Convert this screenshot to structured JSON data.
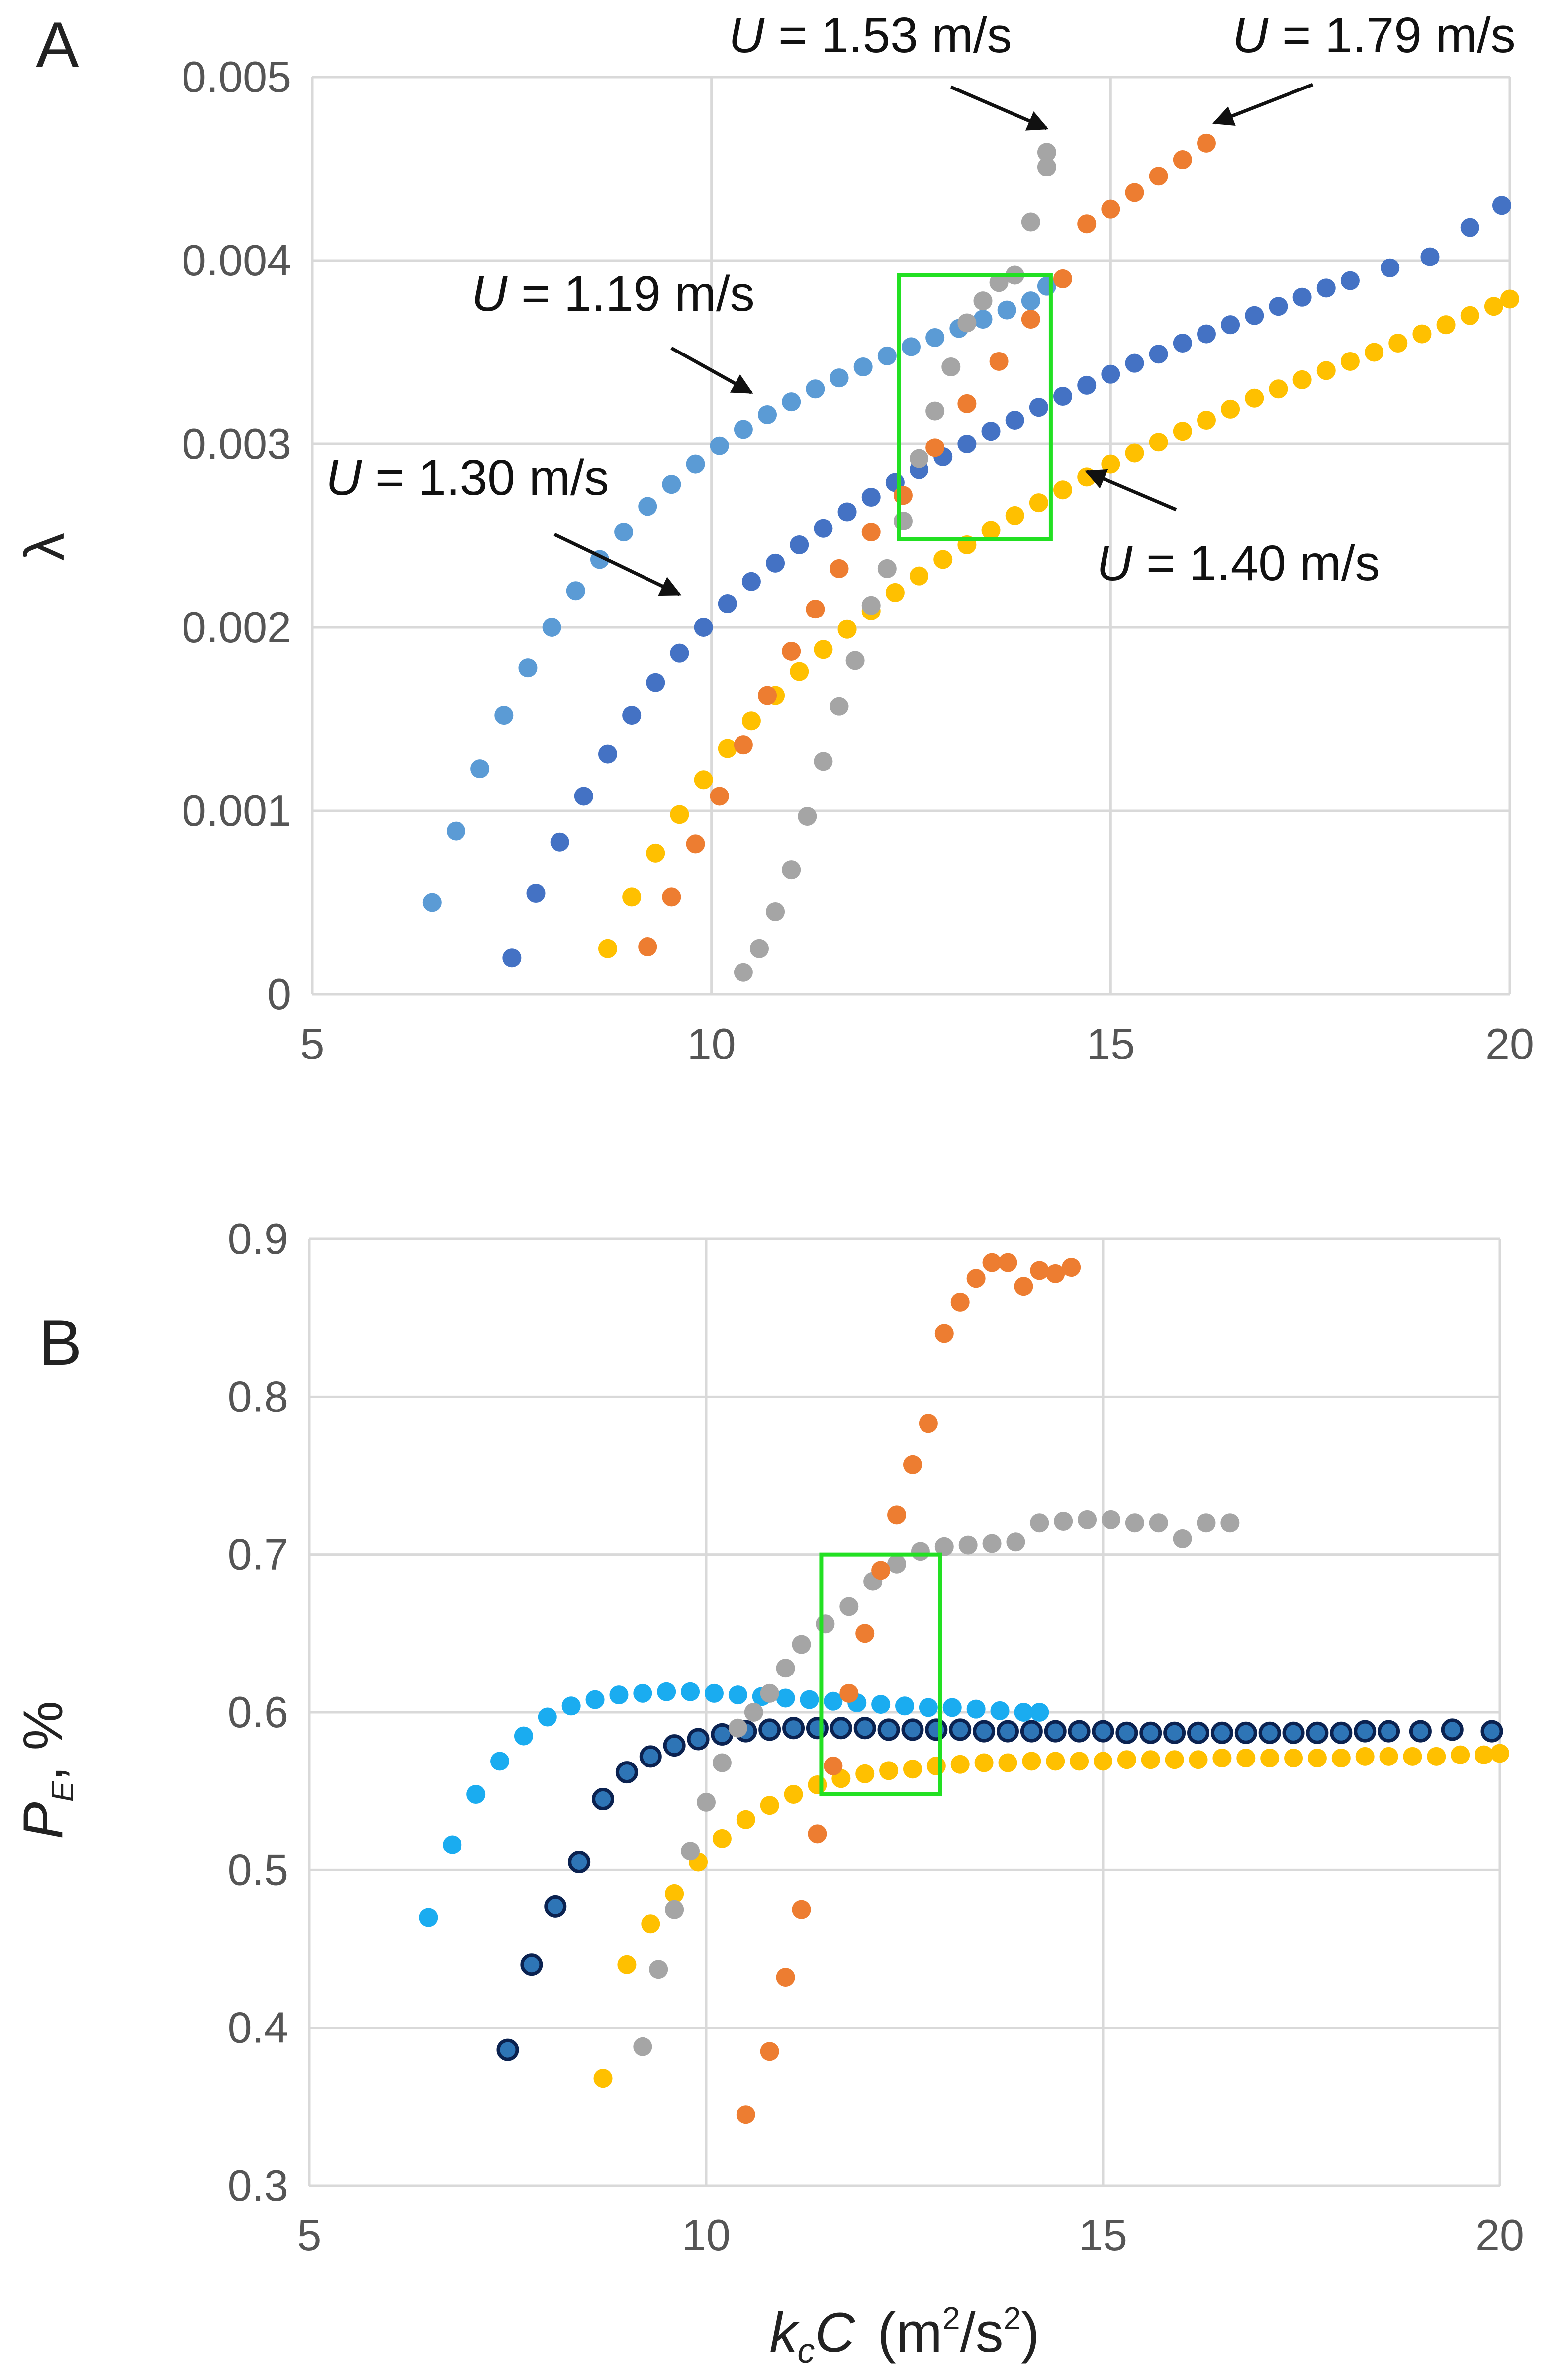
{
  "chart_data": [
    {
      "panel": "A",
      "type": "scatter",
      "xlabel": "",
      "ylabel": "λ",
      "xlim": [
        5,
        20
      ],
      "ylim": [
        0,
        0.005
      ],
      "xticks": [
        "5",
        "10",
        "15",
        "20"
      ],
      "yticks": [
        "0",
        "0.001",
        "0.002",
        "0.003",
        "0.004",
        "0.005"
      ],
      "grid": true,
      "highlight_box": {
        "x": [
          12.35,
          14.25
        ],
        "y": [
          0.00248,
          0.00392
        ]
      },
      "annotations": [
        {
          "text": "U = 1.19 m/s",
          "var": "U",
          "rest": " = 1.19 m/s",
          "arrow_to": [
            10.5,
            0.00328
          ]
        },
        {
          "text": "U = 1.30 m/s",
          "var": "U",
          "rest": " = 1.30 m/s",
          "arrow_to": [
            9.6,
            0.00218
          ]
        },
        {
          "text": "U = 1.40 m/s",
          "var": "U",
          "rest": " = 1.40 m/s",
          "arrow_to": [
            14.7,
            0.00285
          ]
        },
        {
          "text": "U = 1.53 m/s",
          "var": "U",
          "rest": " = 1.53 m/s",
          "arrow_to": [
            14.2,
            0.00472
          ]
        },
        {
          "text": "U = 1.79 m/s",
          "var": "U",
          "rest": " = 1.79 m/s",
          "arrow_to": [
            16.3,
            0.00475
          ]
        }
      ],
      "series": [
        {
          "name": "U = 1.19 m/s",
          "color": "#5b9bd5",
          "x": [
            6.5,
            6.8,
            7.1,
            7.4,
            7.7,
            8.0,
            8.3,
            8.6,
            8.9,
            9.2,
            9.5,
            9.8,
            10.1,
            10.4,
            10.7,
            11.0,
            11.3,
            11.6,
            11.9,
            12.2,
            12.5,
            12.8,
            13.1,
            13.4,
            13.7,
            14.0,
            14.2
          ],
          "y": [
            0.0005,
            0.00089,
            0.00123,
            0.00152,
            0.00178,
            0.002,
            0.0022,
            0.00237,
            0.00252,
            0.00266,
            0.00278,
            0.00289,
            0.00299,
            0.00308,
            0.00316,
            0.00323,
            0.0033,
            0.00336,
            0.00342,
            0.00348,
            0.00353,
            0.00358,
            0.00363,
            0.00368,
            0.00373,
            0.00378,
            0.00386
          ]
        },
        {
          "name": "U = 1.30 m/s",
          "color": "#4472c4",
          "x": [
            7.5,
            7.8,
            8.1,
            8.4,
            8.7,
            9.0,
            9.3,
            9.6,
            9.9,
            10.2,
            10.5,
            10.8,
            11.1,
            11.4,
            11.7,
            12.0,
            12.3,
            12.6,
            12.9,
            13.2,
            13.5,
            13.8,
            14.1,
            14.4,
            14.7,
            15.0,
            15.3,
            15.6,
            15.9,
            16.2,
            16.5,
            16.8,
            17.1,
            17.4,
            17.7,
            18.0,
            18.5,
            19.0,
            19.5,
            19.9
          ],
          "y": [
            0.0002,
            0.00055,
            0.00083,
            0.00108,
            0.00131,
            0.00152,
            0.0017,
            0.00186,
            0.002,
            0.00213,
            0.00225,
            0.00235,
            0.00245,
            0.00254,
            0.00263,
            0.00271,
            0.00279,
            0.00286,
            0.00293,
            0.003,
            0.00307,
            0.00313,
            0.0032,
            0.00326,
            0.00332,
            0.00338,
            0.00344,
            0.00349,
            0.00355,
            0.0036,
            0.00365,
            0.0037,
            0.00375,
            0.0038,
            0.00385,
            0.00389,
            0.00396,
            0.00402,
            0.00418,
            0.0043
          ]
        },
        {
          "name": "U = 1.40 m/s",
          "color": "#ffc000",
          "x": [
            8.7,
            9.0,
            9.3,
            9.6,
            9.9,
            10.2,
            10.5,
            10.8,
            11.1,
            11.4,
            11.7,
            12.0,
            12.3,
            12.6,
            12.9,
            13.2,
            13.5,
            13.8,
            14.1,
            14.4,
            14.7,
            15.0,
            15.3,
            15.6,
            15.9,
            16.2,
            16.5,
            16.8,
            17.1,
            17.4,
            17.7,
            18.0,
            18.3,
            18.6,
            18.9,
            19.2,
            19.5,
            19.8,
            20.0
          ],
          "y": [
            0.00025,
            0.00053,
            0.00077,
            0.00098,
            0.00117,
            0.00134,
            0.00149,
            0.00163,
            0.00176,
            0.00188,
            0.00199,
            0.00209,
            0.00219,
            0.00228,
            0.00237,
            0.00245,
            0.00253,
            0.00261,
            0.00268,
            0.00275,
            0.00282,
            0.00289,
            0.00295,
            0.00301,
            0.00307,
            0.00313,
            0.00319,
            0.00325,
            0.0033,
            0.00335,
            0.0034,
            0.00345,
            0.0035,
            0.00355,
            0.0036,
            0.00365,
            0.0037,
            0.00375,
            0.00379
          ]
        },
        {
          "name": "U = 1.53 m/s",
          "color": "#a5a5a5",
          "x": [
            10.4,
            10.6,
            10.8,
            11.0,
            11.2,
            11.4,
            11.6,
            11.8,
            12.0,
            12.2,
            12.4,
            12.6,
            12.8,
            13.0,
            13.2,
            13.4,
            13.6,
            13.8,
            14.0,
            14.2,
            14.2
          ],
          "y": [
            0.00012,
            0.00025,
            0.00045,
            0.00068,
            0.00097,
            0.00127,
            0.00157,
            0.00182,
            0.00212,
            0.00232,
            0.00258,
            0.00292,
            0.00318,
            0.00342,
            0.00366,
            0.00378,
            0.00388,
            0.00392,
            0.00421,
            0.00451,
            0.00459
          ]
        },
        {
          "name": "U = 1.79 m/s",
          "color": "#ed7d31",
          "x": [
            9.2,
            9.5,
            9.8,
            10.1,
            10.4,
            10.7,
            11.0,
            11.3,
            11.6,
            12.0,
            12.4,
            12.8,
            13.2,
            13.6,
            14.0,
            14.4,
            14.7,
            15.0,
            15.3,
            15.6,
            15.9,
            16.2
          ],
          "y": [
            0.00026,
            0.00053,
            0.00082,
            0.00108,
            0.00136,
            0.00163,
            0.00187,
            0.0021,
            0.00232,
            0.00252,
            0.00272,
            0.00298,
            0.00322,
            0.00345,
            0.00368,
            0.0039,
            0.0042,
            0.00428,
            0.00437,
            0.00446,
            0.00455,
            0.00464
          ]
        }
      ]
    },
    {
      "panel": "B",
      "type": "scatter",
      "xlabel": "kcC  (m2/s2)",
      "xlabel_parts": {
        "k": "k",
        "c_sub": "c",
        "C": "C",
        "unit_open": "(m",
        "sq1": "2",
        "unit_mid": "/s",
        "sq2": "2",
        "unit_close": ")"
      },
      "ylabel": "PE, %",
      "ylabel_parts": {
        "P": "P",
        "E_sub": "E",
        "rest": ", %"
      },
      "xlim": [
        5,
        20
      ],
      "ylim": [
        0.3,
        0.9
      ],
      "xticks": [
        "5",
        "10",
        "15",
        "20"
      ],
      "yticks": [
        "0.3",
        "0.4",
        "0.5",
        "0.6",
        "0.7",
        "0.8",
        "0.9"
      ],
      "grid": true,
      "highlight_box": {
        "x": [
          11.45,
          12.95
        ],
        "y": [
          0.548,
          0.7
        ]
      },
      "series": [
        {
          "name": "U = 1.19 m/s",
          "color": "#1aacf0",
          "x": [
            6.5,
            6.8,
            7.1,
            7.4,
            7.7,
            8.0,
            8.3,
            8.6,
            8.9,
            9.2,
            9.5,
            9.8,
            10.1,
            10.4,
            10.7,
            11.0,
            11.3,
            11.6,
            11.9,
            12.2,
            12.5,
            12.8,
            13.1,
            13.4,
            13.7,
            14.0,
            14.2
          ],
          "y": [
            0.47,
            0.516,
            0.548,
            0.569,
            0.585,
            0.597,
            0.604,
            0.608,
            0.611,
            0.612,
            0.613,
            0.613,
            0.612,
            0.611,
            0.61,
            0.609,
            0.608,
            0.607,
            0.606,
            0.605,
            0.604,
            0.603,
            0.603,
            0.602,
            0.601,
            0.6,
            0.6
          ]
        },
        {
          "name": "U = 1.30 m/s",
          "color": "#1f4e9a",
          "x": [
            7.5,
            7.8,
            8.1,
            8.4,
            8.7,
            9.0,
            9.3,
            9.6,
            9.9,
            10.2,
            10.5,
            10.8,
            11.1,
            11.4,
            11.7,
            12.0,
            12.3,
            12.6,
            12.9,
            13.2,
            13.5,
            13.8,
            14.1,
            14.4,
            14.7,
            15.0,
            15.3,
            15.6,
            15.9,
            16.2,
            16.5,
            16.8,
            17.1,
            17.4,
            17.7,
            18.0,
            18.3,
            18.6,
            19.0,
            19.4,
            19.9
          ],
          "y": [
            0.386,
            0.44,
            0.477,
            0.505,
            0.545,
            0.562,
            0.572,
            0.579,
            0.583,
            0.586,
            0.588,
            0.589,
            0.59,
            0.59,
            0.59,
            0.59,
            0.589,
            0.589,
            0.589,
            0.589,
            0.588,
            0.588,
            0.588,
            0.588,
            0.588,
            0.588,
            0.587,
            0.587,
            0.587,
            0.587,
            0.587,
            0.587,
            0.587,
            0.587,
            0.587,
            0.587,
            0.588,
            0.588,
            0.588,
            0.589,
            0.588
          ]
        },
        {
          "name": "U = 1.40 m/s",
          "color": "#ffc000",
          "x": [
            8.7,
            9.0,
            9.3,
            9.6,
            9.9,
            10.2,
            10.5,
            10.8,
            11.1,
            11.4,
            11.7,
            12.0,
            12.3,
            12.6,
            12.9,
            13.2,
            13.5,
            13.8,
            14.1,
            14.4,
            14.7,
            15.0,
            15.3,
            15.6,
            15.9,
            16.2,
            16.5,
            16.8,
            17.1,
            17.4,
            17.7,
            18.0,
            18.3,
            18.6,
            18.9,
            19.2,
            19.5,
            19.8,
            20.0
          ],
          "y": [
            0.368,
            0.44,
            0.466,
            0.485,
            0.505,
            0.52,
            0.532,
            0.541,
            0.548,
            0.554,
            0.558,
            0.561,
            0.563,
            0.564,
            0.566,
            0.567,
            0.568,
            0.568,
            0.569,
            0.569,
            0.569,
            0.569,
            0.57,
            0.57,
            0.57,
            0.57,
            0.571,
            0.571,
            0.571,
            0.571,
            0.571,
            0.571,
            0.572,
            0.572,
            0.572,
            0.572,
            0.573,
            0.573,
            0.574
          ]
        },
        {
          "name": "U = 1.53 m/s",
          "color": "#a5a5a5",
          "x": [
            9.2,
            9.4,
            9.6,
            9.8,
            10.0,
            10.2,
            10.4,
            10.6,
            10.8,
            11.0,
            11.2,
            11.5,
            11.8,
            12.1,
            12.4,
            12.7,
            13.0,
            13.3,
            13.6,
            13.9,
            14.2,
            14.5,
            14.8,
            15.1,
            15.4,
            15.7,
            16.0,
            16.3,
            16.6
          ],
          "y": [
            0.388,
            0.437,
            0.475,
            0.512,
            0.543,
            0.568,
            0.59,
            0.6,
            0.612,
            0.628,
            0.643,
            0.656,
            0.667,
            0.683,
            0.694,
            0.702,
            0.705,
            0.706,
            0.707,
            0.708,
            0.72,
            0.721,
            0.722,
            0.722,
            0.72,
            0.72,
            0.71,
            0.72,
            0.72
          ]
        },
        {
          "name": "U = 1.79 m/s",
          "color": "#ed7d31",
          "x": [
            10.5,
            10.8,
            11.0,
            11.2,
            11.4,
            11.6,
            11.8,
            12.0,
            12.2,
            12.4,
            12.6,
            12.8,
            13.0,
            13.2,
            13.4,
            13.6,
            13.8,
            14.0,
            14.2,
            14.4,
            14.6
          ],
          "y": [
            0.345,
            0.385,
            0.432,
            0.475,
            0.523,
            0.566,
            0.612,
            0.65,
            0.69,
            0.725,
            0.757,
            0.783,
            0.84,
            0.86,
            0.875,
            0.885,
            0.885,
            0.87,
            0.88,
            0.878,
            0.882
          ]
        }
      ]
    }
  ]
}
